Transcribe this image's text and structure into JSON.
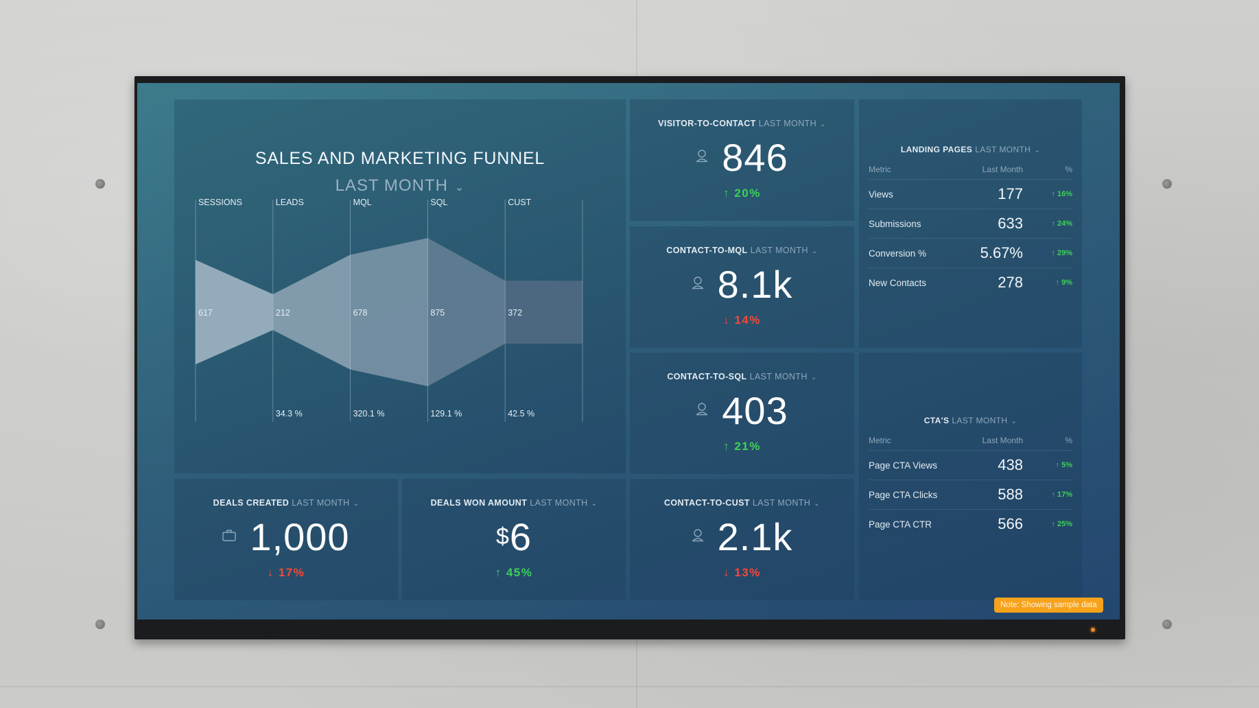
{
  "funnel": {
    "title": "SALES AND MARKETING FUNNEL",
    "period": "LAST MONTH",
    "period_icon": "chevron-down-icon"
  },
  "chart_data": {
    "type": "funnel",
    "title": "SALES AND MARKETING FUNNEL",
    "categories": [
      "SESSIONS",
      "LEADS",
      "MQL",
      "SQL",
      "CUST"
    ],
    "values": [
      617,
      212,
      678,
      875,
      372
    ],
    "value_labels": [
      "617",
      "212",
      "678",
      "875",
      "372"
    ],
    "conversion_pct": [
      null,
      34.3,
      320.1,
      129.1,
      42.5
    ],
    "conversion_labels": [
      "",
      "34.3 %",
      "320.1 %",
      "129.1 %",
      "42.5 %"
    ],
    "colors": [
      "#9fb4c3",
      "#8ba2b3",
      "#7a93a6",
      "#637e93",
      "#4f6a82"
    ]
  },
  "widgets": {
    "visitor_to_contact": {
      "title": "VISITOR-TO-CONTACT",
      "period": "LAST MONTH",
      "value": "846",
      "delta": "20%",
      "direction": "up",
      "icon": "user-icon"
    },
    "contact_to_mql": {
      "title": "CONTACT-TO-MQL",
      "period": "LAST MONTH",
      "value": "8.1k",
      "delta": "14%",
      "direction": "down",
      "icon": "user-icon"
    },
    "contact_to_sql": {
      "title": "CONTACT-TO-SQL",
      "period": "LAST MONTH",
      "value": "403",
      "delta": "21%",
      "direction": "up",
      "icon": "user-icon"
    },
    "contact_to_cust": {
      "title": "CONTACT-TO-CUST",
      "period": "LAST MONTH",
      "value": "2.1k",
      "delta": "13%",
      "direction": "down",
      "icon": "user-icon"
    },
    "deals_created": {
      "title": "DEALS CREATED",
      "period": "LAST MONTH",
      "value": "1,000",
      "delta": "17%",
      "direction": "down",
      "icon": "briefcase-icon"
    },
    "deals_won_amount": {
      "title": "DEALS WON AMOUNT",
      "period": "LAST MONTH",
      "currency": "$",
      "value": "6",
      "delta": "45%",
      "direction": "up"
    }
  },
  "arrows": {
    "up": "↑",
    "down": "↓"
  },
  "landing_pages": {
    "title": "LANDING PAGES",
    "period": "LAST MONTH",
    "columns": [
      "Metric",
      "Last Month",
      "%"
    ],
    "rows": [
      {
        "metric": "Views",
        "value": "177",
        "pct": "16%"
      },
      {
        "metric": "Submissions",
        "value": "633",
        "pct": "24%"
      },
      {
        "metric": "Conversion %",
        "value": "5.67%",
        "pct": "29%"
      },
      {
        "metric": "New Contacts",
        "value": "278",
        "pct": "9%"
      }
    ]
  },
  "ctas": {
    "title": "CTA'S",
    "period": "LAST MONTH",
    "columns": [
      "Metric",
      "Last Month",
      "%"
    ],
    "rows": [
      {
        "metric": "Page CTA Views",
        "value": "438",
        "pct": "5%"
      },
      {
        "metric": "Page CTA Clicks",
        "value": "588",
        "pct": "17%"
      },
      {
        "metric": "Page CTA CTR",
        "value": "566",
        "pct": "25%"
      }
    ]
  },
  "note": "Note: Showing sample data",
  "colors": {
    "up": "#3ed05a",
    "down": "#f04a3a",
    "note_bg": "#f7a21b",
    "screen_bg": "#2f5f7a"
  }
}
